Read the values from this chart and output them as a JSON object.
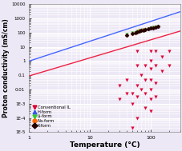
{
  "xlabel": "Temperature (°C)",
  "ylabel": "Proton conductivity (mS/cm)",
  "xlim": [
    1,
    300
  ],
  "ylim": [
    1e-05,
    10000
  ],
  "background_color": "#ede8f5",
  "grid_color": "#ffffff",
  "blue_line_pts": [
    [
      1,
      1.0
    ],
    [
      300,
      3000
    ]
  ],
  "red_line_pts": [
    [
      1,
      0.09
    ],
    [
      300,
      130
    ]
  ],
  "conventional_IL": {
    "color": "#dd0033",
    "marker": "v",
    "x": [
      30,
      30,
      40,
      40,
      50,
      50,
      50,
      60,
      60,
      60,
      60,
      60,
      70,
      70,
      80,
      80,
      80,
      80,
      100,
      100,
      100,
      100,
      100,
      100,
      100,
      120,
      120,
      120,
      120,
      150,
      150,
      200,
      200
    ],
    "y": [
      0.02,
      0.002,
      0.05,
      0.005,
      0.001,
      2e-05,
      0.005,
      0.02,
      0.003,
      0.0001,
      5.0,
      0.5,
      0.1,
      0.01,
      0.5,
      0.05,
      0.005,
      0.0005,
      5.0,
      1.0,
      0.3,
      0.05,
      0.01,
      0.002,
      0.0003,
      5.0,
      0.5,
      0.03,
      0.003,
      2.0,
      0.2,
      5.0,
      0.5
    ]
  },
  "H_form": {
    "color": "#3355ee",
    "marker": "^",
    "x": [
      40,
      50,
      55,
      60,
      65,
      70,
      75,
      80,
      90,
      100,
      110,
      120,
      130
    ],
    "y": [
      80,
      100,
      110,
      130,
      150,
      160,
      170,
      180,
      200,
      220,
      240,
      260,
      280
    ]
  },
  "Li_form": {
    "color": "#33cc33",
    "marker": "v",
    "x": [
      40,
      50,
      55,
      60,
      65,
      70,
      75,
      80,
      90,
      100,
      110,
      120,
      130
    ],
    "y": [
      75,
      95,
      105,
      125,
      145,
      155,
      165,
      175,
      195,
      215,
      235,
      255,
      275
    ]
  },
  "Na_form": {
    "color": "#ff6600",
    "marker": "o",
    "x": [
      40,
      50,
      55,
      60,
      65,
      70,
      75,
      80,
      90,
      100,
      110,
      120,
      130
    ],
    "y": [
      70,
      90,
      100,
      120,
      140,
      150,
      160,
      170,
      190,
      210,
      230,
      250,
      270
    ]
  },
  "K_form": {
    "color": "#220000",
    "marker": "D",
    "x": [
      40,
      50,
      55,
      60,
      65,
      70,
      75,
      80,
      90,
      100,
      110,
      120,
      130
    ],
    "y": [
      65,
      85,
      95,
      115,
      135,
      145,
      155,
      165,
      185,
      205,
      225,
      245,
      265
    ]
  },
  "yticks": [
    1e-05,
    0.0001,
    0.001,
    0.01,
    0.1,
    1,
    10,
    100,
    1000,
    10000
  ],
  "yticklabels": [
    "1E-5",
    "1E-4",
    "1E-3",
    "0.01",
    "0.1",
    "1",
    "10",
    "100",
    "1000",
    "10000"
  ],
  "xticks": [
    1,
    10,
    100
  ],
  "xticklabels": [
    "1",
    "10",
    "100"
  ],
  "legend_labels": [
    "Conventional IL",
    "H-form",
    "Li-form",
    "Na-form",
    "K-form"
  ],
  "legend_colors": [
    "#dd0033",
    "#3355ee",
    "#33cc33",
    "#ff6600",
    "#220000"
  ],
  "legend_markers": [
    "v",
    "^",
    "v",
    "o",
    "D"
  ]
}
